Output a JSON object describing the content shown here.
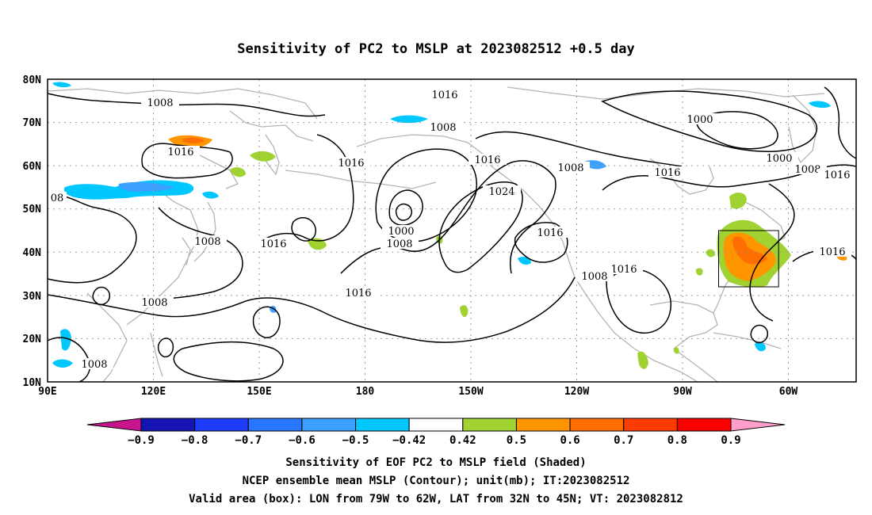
{
  "title": "Sensitivity of PC2 to MSLP at 2023082512 +0.5 day",
  "map": {
    "lat_labels": [
      "80N",
      "70N",
      "60N",
      "50N",
      "40N",
      "30N",
      "20N",
      "10N"
    ],
    "lon_labels": [
      "90E",
      "120E",
      "150E",
      "180",
      "150W",
      "120W",
      "90W",
      "60W"
    ],
    "contour_labels": [
      {
        "text": "1008"
      },
      {
        "text": "1016"
      },
      {
        "text": "1016"
      },
      {
        "text": "1008"
      },
      {
        "text": "1016"
      },
      {
        "text": "1000"
      },
      {
        "text": "1000"
      },
      {
        "text": "1008"
      },
      {
        "text": "1016"
      },
      {
        "text": "08"
      },
      {
        "text": "1016"
      },
      {
        "text": "1008"
      },
      {
        "text": "1016"
      },
      {
        "text": "1024"
      },
      {
        "text": "1000"
      },
      {
        "text": "1008"
      },
      {
        "text": "1016"
      },
      {
        "text": "1008"
      },
      {
        "text": "1016"
      },
      {
        "text": "1016"
      },
      {
        "text": "1008"
      },
      {
        "text": "1016"
      },
      {
        "text": "1008"
      },
      {
        "text": "1008"
      },
      {
        "text": "1016"
      }
    ],
    "valid_box": {
      "lon_from": "79W",
      "lon_to": "62W",
      "lat_from": "32N",
      "lat_to": "45N"
    },
    "colors": {
      "land_outline": "#b4b4b4",
      "contour": "#000000",
      "grid": "#9a9a9a",
      "box": "#000000"
    }
  },
  "colorbar": {
    "labels": [
      "-0.9",
      "-0.8",
      "-0.7",
      "-0.6",
      "-0.5",
      "-0.42",
      "0.42",
      "0.5",
      "0.6",
      "0.7",
      "0.8",
      "0.9"
    ],
    "colors": [
      "#c8148c",
      "#1414b4",
      "#1e3cff",
      "#2878ff",
      "#3ca0ff",
      "#00c8ff",
      "#ffffff",
      "#a0d232",
      "#ff9600",
      "#ff6e00",
      "#ff3c00",
      "#ff0000",
      "#ff9ec8"
    ]
  },
  "footer": {
    "line1": "Sensitivity of EOF PC2 to MSLP field (Shaded)",
    "line2": "NCEP ensemble mean MSLP (Contour); unit(mb); IT:2023082512",
    "line3": "Valid area (box): LON from 79W to 62W, LAT from 32N to 45N; VT: 2023082812"
  }
}
